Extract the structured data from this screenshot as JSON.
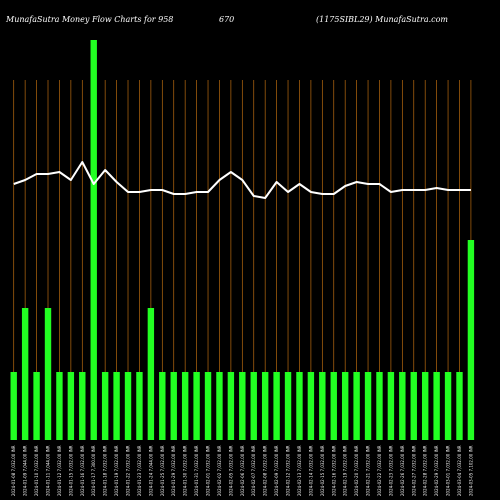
{
  "header": {
    "left": "MunafaSutra  Money Flow  Charts for 958",
    "middle": "670",
    "right": "(1175SIBL29) MunafaSutra.com"
  },
  "chart_data": {
    "type": "bar",
    "grid": true,
    "ylim": [
      0,
      100
    ],
    "categories": [
      "2024-01-08 7,032.00 INR",
      "2024-01-09 7,044.00 INR",
      "2024-01-10 7,032.00 INR",
      "2024-01-11 7,044.00 INR",
      "2024-01-12 7,032.00 INR",
      "2024-01-15 7,032.00 INR",
      "2024-01-16 7,032.00 INR",
      "2024-01-17 7,300.00 INR",
      "2024-01-18 7,032.00 INR",
      "2024-01-19 7,032.00 INR",
      "2024-01-22 7,032.00 INR",
      "2024-01-23 7,032.00 INR",
      "2024-01-24 7,044.00 INR",
      "2024-01-25 7,032.00 INR",
      "2024-01-29 7,032.00 INR",
      "2024-01-30 7,032.00 INR",
      "2024-01-31 7,032.00 INR",
      "2024-02-01 7,032.00 INR",
      "2024-02-02 7,032.00 INR",
      "2024-02-05 7,032.00 INR",
      "2024-02-06 7,032.00 INR",
      "2024-02-07 7,032.00 INR",
      "2024-02-08 7,032.00 INR",
      "2024-02-09 7,032.00 INR",
      "2024-02-12 7,032.00 INR",
      "2024-02-13 7,032.00 INR",
      "2024-02-14 7,032.00 INR",
      "2024-02-15 7,032.00 INR",
      "2024-02-16 7,032.00 INR",
      "2024-02-19 7,032.00 INR",
      "2024-02-20 7,032.00 INR",
      "2024-02-21 7,032.00 INR",
      "2024-02-22 7,032.00 INR",
      "2024-02-23 7,032.00 INR",
      "2024-02-26 7,032.00 INR",
      "2024-02-27 7,032.00 INR",
      "2024-02-28 7,032.00 INR",
      "2024-02-29 7,032.00 INR",
      "2024-03-01 7,032.00 INR",
      "2024-03-04 7,032.00 INR",
      "2024-03-05 7,102.00 INR"
    ],
    "series": [
      {
        "kind": "bar",
        "color": "#22ff22",
        "values": [
          17,
          33,
          17,
          33,
          17,
          17,
          17,
          100,
          17,
          17,
          17,
          17,
          33,
          17,
          17,
          17,
          17,
          17,
          17,
          17,
          17,
          17,
          17,
          17,
          17,
          17,
          17,
          17,
          17,
          17,
          17,
          17,
          17,
          17,
          17,
          17,
          17,
          17,
          17,
          17,
          50
        ]
      },
      {
        "kind": "line",
        "color": "#ffffff",
        "values": [
          64,
          65,
          66.5,
          66.5,
          67,
          65,
          69.5,
          64,
          67.5,
          64.5,
          62,
          62,
          62.5,
          62.5,
          61.5,
          61.5,
          62,
          62,
          65,
          67,
          65,
          61,
          60.5,
          64.5,
          62,
          64,
          62,
          61.5,
          61.5,
          63.5,
          64.5,
          64,
          64,
          62,
          62.5,
          62.5,
          62.5,
          63,
          62.5,
          62.5,
          62.5
        ]
      }
    ],
    "colors": {
      "background": "#000000",
      "grid": "#b86a10",
      "bar": "#22ff22",
      "line": "#ffffff",
      "text": "#ffffff"
    }
  }
}
